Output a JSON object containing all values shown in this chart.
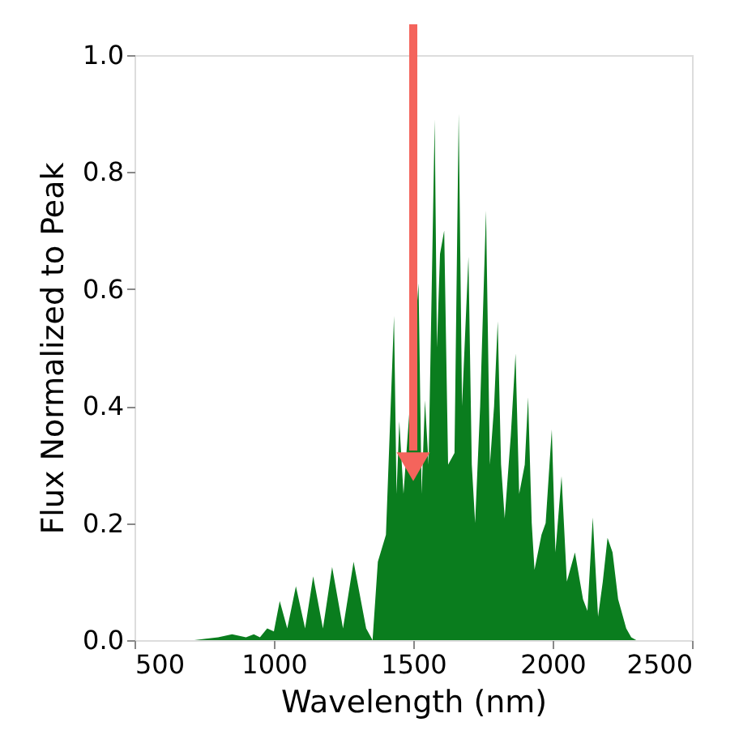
{
  "chart_data": {
    "type": "area",
    "xlabel": "Wavelength (nm)",
    "ylabel": "Flux Normalized to Peak",
    "x": [
      500,
      715,
      800,
      850,
      900,
      928,
      950,
      976,
      1000,
      1021,
      1048,
      1079,
      1112,
      1141,
      1176,
      1209,
      1248,
      1286,
      1331,
      1354,
      1373,
      1402,
      1431,
      1440,
      1450,
      1465,
      1519,
      1530,
      1542,
      1555,
      1577,
      1585,
      1596,
      1611,
      1625,
      1648,
      1663,
      1675,
      1698,
      1710,
      1722,
      1740,
      1761,
      1775,
      1790,
      1803,
      1815,
      1828,
      1850,
      1867,
      1880,
      1900,
      1912,
      1925,
      1935,
      1960,
      1975,
      1997,
      2010,
      2032,
      2051,
      2080,
      2109,
      2125,
      2144,
      2163,
      2180,
      2197,
      2215,
      2235,
      2264,
      2282,
      2300,
      2500
    ],
    "series": [
      {
        "color": "#0a7d1e",
        "values": [
          0,
          0,
          0.005,
          0.01,
          0.005,
          0.01,
          0.005,
          0.02,
          0.015,
          0.067,
          0.02,
          0.092,
          0.02,
          0.109,
          0.02,
          0.125,
          0.02,
          0.134,
          0.02,
          0,
          0.134,
          0.18,
          0.554,
          0.25,
          0.374,
          0.25,
          0.61,
          0.25,
          0.41,
          0.3,
          0.89,
          0.5,
          0.66,
          0.7,
          0.3,
          0.32,
          0.9,
          0.4,
          0.655,
          0.3,
          0.2,
          0.4,
          0.734,
          0.3,
          0.4,
          0.545,
          0.3,
          0.208,
          0.35,
          0.49,
          0.25,
          0.3,
          0.415,
          0.2,
          0.12,
          0.18,
          0.2,
          0.36,
          0.15,
          0.28,
          0.1,
          0.15,
          0.07,
          0.05,
          0.21,
          0.04,
          0.1,
          0.175,
          0.15,
          0.07,
          0.02,
          0.005,
          0,
          0
        ]
      }
    ],
    "xlim": [
      500,
      2500
    ],
    "xticks": [
      500,
      1000,
      1500,
      2000,
      2500
    ],
    "ylim": [
      0,
      1
    ],
    "yticks": [
      {
        "value": 0,
        "label": "0.0"
      },
      {
        "value": 0.2,
        "label": "0.2"
      },
      {
        "value": 0.4,
        "label": "0.4"
      },
      {
        "value": 0.6,
        "label": "0.6"
      },
      {
        "value": 0.8,
        "label": "0.8"
      },
      {
        "value": 1,
        "label": "1.0"
      }
    ],
    "grid": false
  }
}
